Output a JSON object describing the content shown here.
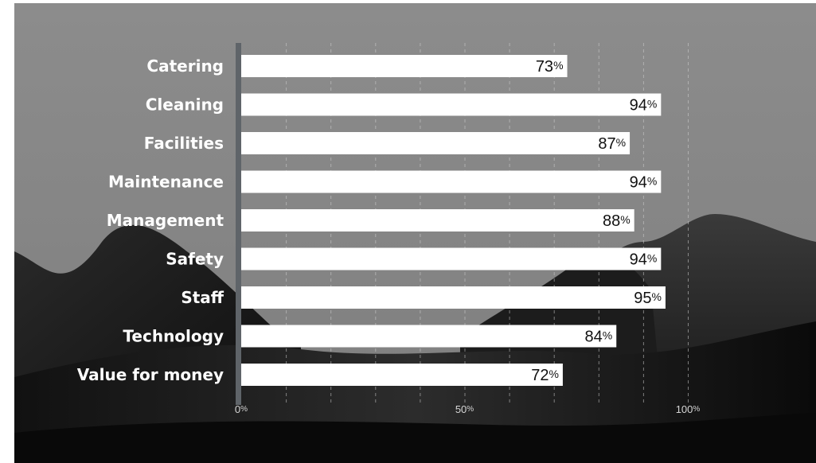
{
  "chart_data": {
    "type": "bar",
    "orientation": "horizontal",
    "categories": [
      "Catering",
      "Cleaning",
      "Facilities",
      "Maintenance",
      "Management",
      "Safety",
      "Staff",
      "Technology",
      "Value for money"
    ],
    "values": [
      73,
      94,
      87,
      94,
      88,
      94,
      95,
      84,
      72
    ],
    "value_labels": [
      "73",
      "94",
      "87",
      "94",
      "88",
      "94",
      "95",
      "84",
      "72"
    ],
    "value_unit": "%",
    "x_ticks": [
      {
        "value": 0,
        "label": "0"
      },
      {
        "value": 50,
        "label": "50"
      },
      {
        "value": 100,
        "label": "100"
      }
    ],
    "x_unit": "%",
    "xlim": [
      0,
      100
    ],
    "grid": "vertical dashed",
    "legend": "none",
    "title": "",
    "xlabel": "",
    "ylabel": ""
  },
  "colors": {
    "bar": "#ffffff",
    "axis_line": "#5f6469",
    "grid": "#d0d0d0",
    "background": "#8a8a8a"
  }
}
